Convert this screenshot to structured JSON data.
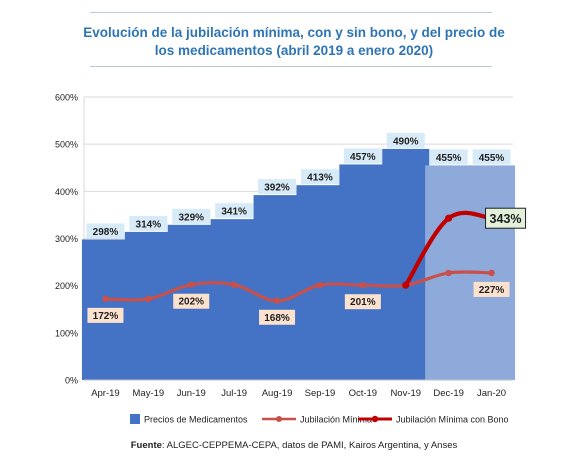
{
  "header": {
    "title_line1": "Evolución de la jubilación mínima, con y sin bono, y del precio de",
    "title_line2": "los medicamentos (abril 2019 a enero 2020)"
  },
  "footer": {
    "source_label": "Fuente",
    "source_text": ": ALGEC-CEPPEMA-CEPA, datos de PAMI, Kairos Argentina, y Anses"
  },
  "colors": {
    "bar": "#4472c4",
    "bar_light": "#8eaadb",
    "bar_label_bg": "#d6eaf8",
    "min_line": "#c9504a",
    "min_label_bg": "#fbe2cf",
    "bono_line": "#c00000",
    "bono_label_bg": "#e2efd9",
    "title": "#2e75b6"
  },
  "chart_data": {
    "type": "bar",
    "categories": [
      "Apr-19",
      "May-19",
      "Jun-19",
      "Jul-19",
      "Aug-19",
      "Sep-19",
      "Oct-19",
      "Nov-19",
      "Dec-19",
      "Jan-20"
    ],
    "ylim": [
      0,
      600
    ],
    "yticks": [
      "0%",
      "100%",
      "200%",
      "300%",
      "400%",
      "500%",
      "600%"
    ],
    "grid": true,
    "legend_position": "bottom",
    "series": [
      {
        "name": "Precios de Medicamentos",
        "kind": "bar",
        "values": [
          298,
          314,
          329,
          341,
          392,
          413,
          457,
          490,
          455,
          455
        ],
        "labels": [
          "298%",
          "314%",
          "329%",
          "341%",
          "392%",
          "413%",
          "457%",
          "490%",
          "455%",
          "455%"
        ]
      },
      {
        "name": "Jubilación Mínima",
        "kind": "line",
        "values": [
          172,
          172,
          202,
          202,
          168,
          201,
          201,
          201,
          227,
          227
        ],
        "point_labels": [
          {
            "index": 0,
            "text": "172%"
          },
          {
            "index": 2,
            "text": "202%"
          },
          {
            "index": 4,
            "text": "168%"
          },
          {
            "index": 6,
            "text": "201%"
          },
          {
            "index": 9,
            "text": "227%"
          }
        ]
      },
      {
        "name": "Jubilación Mínima con Bono",
        "kind": "line",
        "values": [
          null,
          null,
          null,
          null,
          null,
          null,
          null,
          201,
          343,
          343
        ],
        "point_labels": [
          {
            "index": 9,
            "text": "343%"
          }
        ]
      }
    ]
  }
}
